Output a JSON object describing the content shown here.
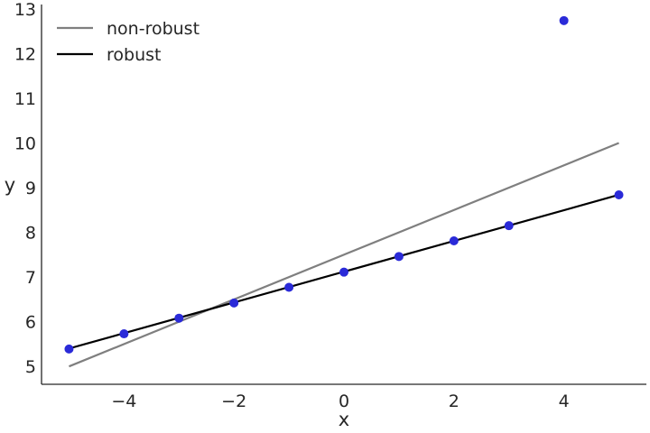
{
  "chart_data": {
    "type": "scatter",
    "title": "",
    "xlabel": "x",
    "ylabel": "y",
    "xlim": [
      -5.5,
      5.5
    ],
    "ylim": [
      4.6,
      13.1
    ],
    "xticks": [
      -4,
      -2,
      0,
      2,
      4
    ],
    "xtick_labels": [
      "−4",
      "−2",
      "0",
      "2",
      "4"
    ],
    "yticks": [
      5,
      6,
      7,
      8,
      9,
      10,
      11,
      12,
      13
    ],
    "ytick_labels": [
      "5",
      "6",
      "7",
      "8",
      "9",
      "10",
      "11",
      "12",
      "13"
    ],
    "grid": false,
    "legend_position": "top-left",
    "points": {
      "x": [
        -5,
        -4,
        -3,
        -2,
        -1,
        0,
        1,
        2,
        3,
        4,
        5
      ],
      "y": [
        5.39,
        5.73,
        6.08,
        6.42,
        6.77,
        7.11,
        7.46,
        7.81,
        8.15,
        12.74,
        8.84
      ],
      "color": "#2a2ad8"
    },
    "series": [
      {
        "name": "non-robust",
        "x": [
          -5,
          5
        ],
        "y": [
          5.0,
          10.0
        ],
        "color": "#7f7f7f"
      },
      {
        "name": "robust",
        "x": [
          -5,
          5
        ],
        "y": [
          5.4,
          8.84
        ],
        "color": "#000000"
      }
    ]
  }
}
